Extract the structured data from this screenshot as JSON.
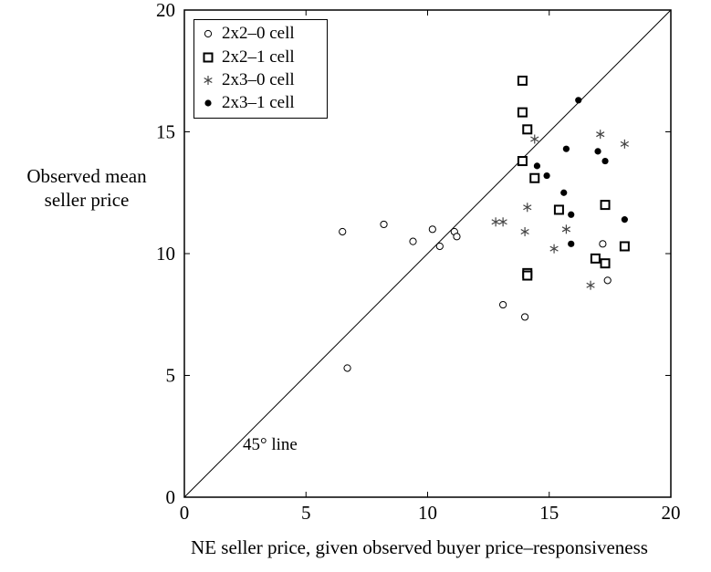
{
  "chart_data": {
    "type": "scatter",
    "xlabel": "NE seller price, given observed buyer price–responsiveness",
    "ylabel_lines": [
      "Observed mean",
      "seller price"
    ],
    "xlim": [
      0,
      20
    ],
    "ylim": [
      0,
      20
    ],
    "xticks": [
      0,
      5,
      10,
      15,
      20
    ],
    "yticks": [
      0,
      5,
      10,
      15,
      20
    ],
    "grid": false,
    "legend_position": "top-left",
    "reference_line": {
      "label": "45° line",
      "from": [
        0,
        0
      ],
      "to": [
        20,
        20
      ]
    },
    "series": [
      {
        "name": "2x2–0 cell",
        "marker": "open-circle",
        "points": [
          [
            6.5,
            10.9
          ],
          [
            6.7,
            5.3
          ],
          [
            8.2,
            11.2
          ],
          [
            9.4,
            10.5
          ],
          [
            10.2,
            11.0
          ],
          [
            10.5,
            10.3
          ],
          [
            11.1,
            10.9
          ],
          [
            11.2,
            10.7
          ],
          [
            13.1,
            7.9
          ],
          [
            14.0,
            7.4
          ],
          [
            17.2,
            10.4
          ],
          [
            17.4,
            8.9
          ]
        ]
      },
      {
        "name": "2x2–1 cell",
        "marker": "open-square",
        "points": [
          [
            13.9,
            17.1
          ],
          [
            13.9,
            15.8
          ],
          [
            13.9,
            13.8
          ],
          [
            14.1,
            15.1
          ],
          [
            14.1,
            9.2
          ],
          [
            14.1,
            9.1
          ],
          [
            14.4,
            13.1
          ],
          [
            15.4,
            11.8
          ],
          [
            16.9,
            9.8
          ],
          [
            17.3,
            12.0
          ],
          [
            17.3,
            9.6
          ],
          [
            18.1,
            10.3
          ]
        ]
      },
      {
        "name": "2x3–0 cell",
        "marker": "asterisk",
        "points": [
          [
            12.8,
            11.3
          ],
          [
            13.1,
            11.3
          ],
          [
            14.0,
            10.9
          ],
          [
            14.1,
            11.9
          ],
          [
            14.4,
            14.7
          ],
          [
            15.2,
            10.2
          ],
          [
            15.7,
            11.0
          ],
          [
            16.7,
            8.7
          ],
          [
            17.1,
            14.9
          ],
          [
            18.1,
            14.5
          ]
        ]
      },
      {
        "name": "2x3–1 cell",
        "marker": "filled-circle",
        "points": [
          [
            14.5,
            13.6
          ],
          [
            14.9,
            13.2
          ],
          [
            15.6,
            12.5
          ],
          [
            15.7,
            14.3
          ],
          [
            15.9,
            11.6
          ],
          [
            15.9,
            10.4
          ],
          [
            16.2,
            16.3
          ],
          [
            17.0,
            14.2
          ],
          [
            17.3,
            13.8
          ],
          [
            18.1,
            11.4
          ]
        ]
      }
    ]
  }
}
